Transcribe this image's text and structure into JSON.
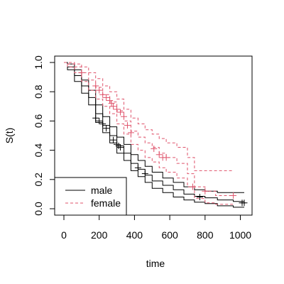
{
  "chart_data": {
    "type": "line",
    "step": true,
    "xlabel": "time",
    "ylabel": "S(t)",
    "xlim": [
      0,
      1022
    ],
    "ylim": [
      0,
      1
    ],
    "x_ticks": [
      0,
      200,
      400,
      600,
      800,
      1000
    ],
    "y_ticks": [
      0.0,
      0.2,
      0.4,
      0.6,
      0.8,
      1.0
    ],
    "x_tick_labels": [
      "0",
      "200",
      "400",
      "600",
      "800",
      "1000"
    ],
    "y_tick_labels": [
      "0.0",
      "0.2",
      "0.4",
      "0.6",
      "0.8",
      "1.0"
    ],
    "legend": {
      "position": "bottom-left",
      "entries": [
        "male",
        "female"
      ]
    },
    "series": [
      {
        "name": "male",
        "color": "#000000",
        "linestyle": "solid",
        "estimate": [
          [
            0,
            1.0
          ],
          [
            20,
            0.97
          ],
          [
            60,
            0.91
          ],
          [
            100,
            0.84
          ],
          [
            140,
            0.76
          ],
          [
            180,
            0.65
          ],
          [
            220,
            0.57
          ],
          [
            260,
            0.5
          ],
          [
            300,
            0.43
          ],
          [
            340,
            0.38
          ],
          [
            380,
            0.31
          ],
          [
            420,
            0.27
          ],
          [
            460,
            0.23
          ],
          [
            500,
            0.19
          ],
          [
            560,
            0.16
          ],
          [
            620,
            0.13
          ],
          [
            680,
            0.1
          ],
          [
            740,
            0.085
          ],
          [
            800,
            0.075
          ],
          [
            870,
            0.06
          ],
          [
            960,
            0.05
          ],
          [
            1022,
            0.05
          ]
        ],
        "upper": [
          [
            0,
            1.0
          ],
          [
            20,
            0.99
          ],
          [
            60,
            0.95
          ],
          [
            100,
            0.88
          ],
          [
            140,
            0.81
          ],
          [
            180,
            0.71
          ],
          [
            220,
            0.63
          ],
          [
            260,
            0.56
          ],
          [
            300,
            0.49
          ],
          [
            340,
            0.44
          ],
          [
            380,
            0.37
          ],
          [
            420,
            0.33
          ],
          [
            460,
            0.29
          ],
          [
            500,
            0.25
          ],
          [
            560,
            0.21
          ],
          [
            620,
            0.18
          ],
          [
            680,
            0.15
          ],
          [
            740,
            0.13
          ],
          [
            800,
            0.12
          ],
          [
            870,
            0.11
          ],
          [
            960,
            0.11
          ],
          [
            1022,
            0.11
          ]
        ],
        "lower": [
          [
            0,
            1.0
          ],
          [
            20,
            0.95
          ],
          [
            60,
            0.87
          ],
          [
            100,
            0.79
          ],
          [
            140,
            0.71
          ],
          [
            180,
            0.59
          ],
          [
            220,
            0.52
          ],
          [
            260,
            0.45
          ],
          [
            300,
            0.38
          ],
          [
            340,
            0.33
          ],
          [
            380,
            0.26
          ],
          [
            420,
            0.22
          ],
          [
            460,
            0.18
          ],
          [
            500,
            0.14
          ],
          [
            560,
            0.11
          ],
          [
            620,
            0.08
          ],
          [
            680,
            0.06
          ],
          [
            740,
            0.045
          ],
          [
            800,
            0.035
          ],
          [
            870,
            0.02
          ],
          [
            960,
            0.01
          ],
          [
            1022,
            0.01
          ]
        ],
        "censored": [
          [
            180,
            0.62
          ],
          [
            200,
            0.6
          ],
          [
            220,
            0.58
          ],
          [
            240,
            0.55
          ],
          [
            280,
            0.47
          ],
          [
            300,
            0.44
          ],
          [
            310,
            0.43
          ],
          [
            320,
            0.42
          ],
          [
            420,
            0.28
          ],
          [
            460,
            0.24
          ],
          [
            770,
            0.08
          ],
          [
            1010,
            0.04
          ],
          [
            1022,
            0.04
          ]
        ]
      },
      {
        "name": "female",
        "color": "#DF536B",
        "linestyle": "dashed",
        "estimate": [
          [
            0,
            1.0
          ],
          [
            20,
            0.99
          ],
          [
            60,
            0.97
          ],
          [
            100,
            0.93
          ],
          [
            140,
            0.88
          ],
          [
            180,
            0.83
          ],
          [
            220,
            0.78
          ],
          [
            260,
            0.73
          ],
          [
            300,
            0.67
          ],
          [
            340,
            0.6
          ],
          [
            380,
            0.53
          ],
          [
            420,
            0.49
          ],
          [
            460,
            0.45
          ],
          [
            500,
            0.42
          ],
          [
            540,
            0.38
          ],
          [
            580,
            0.35
          ],
          [
            640,
            0.31
          ],
          [
            700,
            0.24
          ],
          [
            740,
            0.15
          ],
          [
            800,
            0.12
          ],
          [
            860,
            0.09
          ],
          [
            960,
            0.09
          ]
        ],
        "upper": [
          [
            0,
            1.0
          ],
          [
            20,
            1.0
          ],
          [
            60,
            0.99
          ],
          [
            100,
            0.97
          ],
          [
            140,
            0.93
          ],
          [
            180,
            0.89
          ],
          [
            220,
            0.84
          ],
          [
            260,
            0.8
          ],
          [
            300,
            0.75
          ],
          [
            340,
            0.68
          ],
          [
            380,
            0.62
          ],
          [
            420,
            0.58
          ],
          [
            460,
            0.54
          ],
          [
            500,
            0.51
          ],
          [
            540,
            0.48
          ],
          [
            580,
            0.45
          ],
          [
            640,
            0.42
          ],
          [
            700,
            0.35
          ],
          [
            740,
            0.26
          ],
          [
            800,
            0.26
          ],
          [
            960,
            0.26
          ]
        ],
        "lower": [
          [
            0,
            1.0
          ],
          [
            20,
            0.97
          ],
          [
            60,
            0.93
          ],
          [
            100,
            0.87
          ],
          [
            140,
            0.81
          ],
          [
            180,
            0.75
          ],
          [
            220,
            0.7
          ],
          [
            260,
            0.65
          ],
          [
            300,
            0.58
          ],
          [
            340,
            0.51
          ],
          [
            380,
            0.44
          ],
          [
            420,
            0.4
          ],
          [
            460,
            0.35
          ],
          [
            500,
            0.32
          ],
          [
            540,
            0.28
          ],
          [
            580,
            0.25
          ],
          [
            640,
            0.21
          ],
          [
            700,
            0.15
          ],
          [
            740,
            0.07
          ],
          [
            800,
            0.04
          ],
          [
            860,
            0.03
          ],
          [
            960,
            0.03
          ]
        ],
        "censored": [
          [
            100,
            0.93
          ],
          [
            180,
            0.84
          ],
          [
            200,
            0.81
          ],
          [
            220,
            0.78
          ],
          [
            240,
            0.76
          ],
          [
            260,
            0.74
          ],
          [
            270,
            0.72
          ],
          [
            280,
            0.7
          ],
          [
            300,
            0.68
          ],
          [
            320,
            0.66
          ],
          [
            340,
            0.63
          ],
          [
            360,
            0.57
          ],
          [
            380,
            0.52
          ],
          [
            510,
            0.41
          ],
          [
            540,
            0.37
          ],
          [
            560,
            0.35
          ],
          [
            580,
            0.35
          ],
          [
            730,
            0.15
          ],
          [
            800,
            0.12
          ],
          [
            960,
            0.09
          ]
        ]
      }
    ]
  }
}
